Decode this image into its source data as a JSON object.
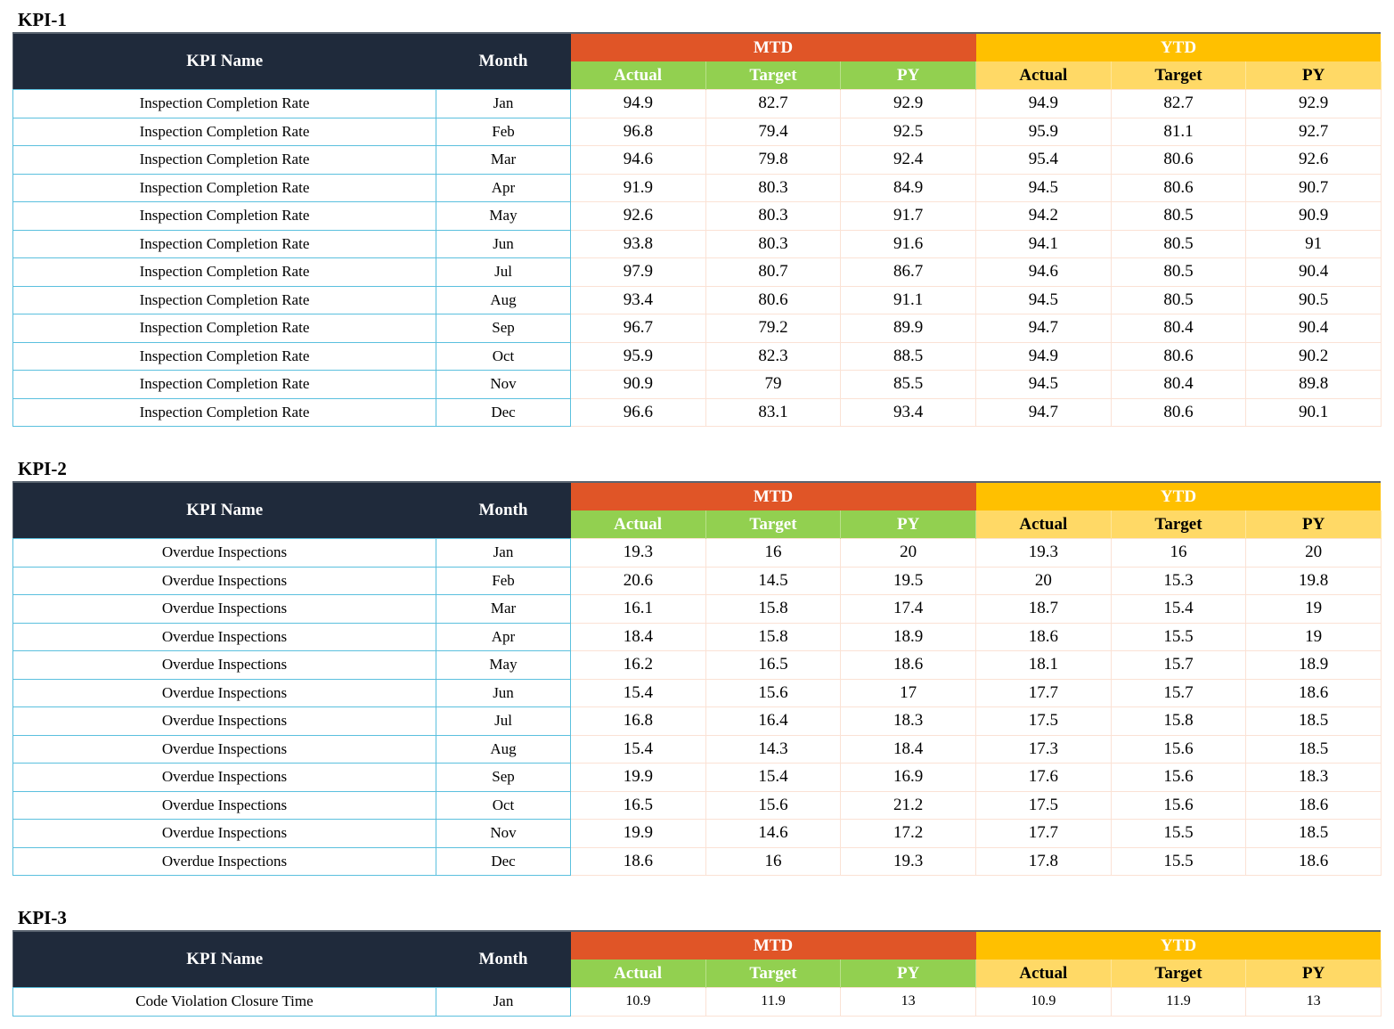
{
  "headers": {
    "kpi_name": "KPI Name",
    "month": "Month",
    "mtd": "MTD",
    "ytd": "YTD",
    "actual": "Actual",
    "target": "Target",
    "py": "PY"
  },
  "kpis": [
    {
      "title": "KPI-1",
      "rows": [
        {
          "name": "Inspection Completion Rate",
          "month": "Jan",
          "mtd_actual": "94.9",
          "mtd_target": "82.7",
          "mtd_py": "92.9",
          "ytd_actual": "94.9",
          "ytd_target": "82.7",
          "ytd_py": "92.9"
        },
        {
          "name": "Inspection Completion Rate",
          "month": "Feb",
          "mtd_actual": "96.8",
          "mtd_target": "79.4",
          "mtd_py": "92.5",
          "ytd_actual": "95.9",
          "ytd_target": "81.1",
          "ytd_py": "92.7"
        },
        {
          "name": "Inspection Completion Rate",
          "month": "Mar",
          "mtd_actual": "94.6",
          "mtd_target": "79.8",
          "mtd_py": "92.4",
          "ytd_actual": "95.4",
          "ytd_target": "80.6",
          "ytd_py": "92.6"
        },
        {
          "name": "Inspection Completion Rate",
          "month": "Apr",
          "mtd_actual": "91.9",
          "mtd_target": "80.3",
          "mtd_py": "84.9",
          "ytd_actual": "94.5",
          "ytd_target": "80.6",
          "ytd_py": "90.7"
        },
        {
          "name": "Inspection Completion Rate",
          "month": "May",
          "mtd_actual": "92.6",
          "mtd_target": "80.3",
          "mtd_py": "91.7",
          "ytd_actual": "94.2",
          "ytd_target": "80.5",
          "ytd_py": "90.9"
        },
        {
          "name": "Inspection Completion Rate",
          "month": "Jun",
          "mtd_actual": "93.8",
          "mtd_target": "80.3",
          "mtd_py": "91.6",
          "ytd_actual": "94.1",
          "ytd_target": "80.5",
          "ytd_py": "91"
        },
        {
          "name": "Inspection Completion Rate",
          "month": "Jul",
          "mtd_actual": "97.9",
          "mtd_target": "80.7",
          "mtd_py": "86.7",
          "ytd_actual": "94.6",
          "ytd_target": "80.5",
          "ytd_py": "90.4"
        },
        {
          "name": "Inspection Completion Rate",
          "month": "Aug",
          "mtd_actual": "93.4",
          "mtd_target": "80.6",
          "mtd_py": "91.1",
          "ytd_actual": "94.5",
          "ytd_target": "80.5",
          "ytd_py": "90.5"
        },
        {
          "name": "Inspection Completion Rate",
          "month": "Sep",
          "mtd_actual": "96.7",
          "mtd_target": "79.2",
          "mtd_py": "89.9",
          "ytd_actual": "94.7",
          "ytd_target": "80.4",
          "ytd_py": "90.4"
        },
        {
          "name": "Inspection Completion Rate",
          "month": "Oct",
          "mtd_actual": "95.9",
          "mtd_target": "82.3",
          "mtd_py": "88.5",
          "ytd_actual": "94.9",
          "ytd_target": "80.6",
          "ytd_py": "90.2"
        },
        {
          "name": "Inspection Completion Rate",
          "month": "Nov",
          "mtd_actual": "90.9",
          "mtd_target": "79",
          "mtd_py": "85.5",
          "ytd_actual": "94.5",
          "ytd_target": "80.4",
          "ytd_py": "89.8"
        },
        {
          "name": "Inspection Completion Rate",
          "month": "Dec",
          "mtd_actual": "96.6",
          "mtd_target": "83.1",
          "mtd_py": "93.4",
          "ytd_actual": "94.7",
          "ytd_target": "80.6",
          "ytd_py": "90.1"
        }
      ]
    },
    {
      "title": "KPI-2",
      "rows": [
        {
          "name": "Overdue Inspections",
          "month": "Jan",
          "mtd_actual": "19.3",
          "mtd_target": "16",
          "mtd_py": "20",
          "ytd_actual": "19.3",
          "ytd_target": "16",
          "ytd_py": "20"
        },
        {
          "name": "Overdue Inspections",
          "month": "Feb",
          "mtd_actual": "20.6",
          "mtd_target": "14.5",
          "mtd_py": "19.5",
          "ytd_actual": "20",
          "ytd_target": "15.3",
          "ytd_py": "19.8"
        },
        {
          "name": "Overdue Inspections",
          "month": "Mar",
          "mtd_actual": "16.1",
          "mtd_target": "15.8",
          "mtd_py": "17.4",
          "ytd_actual": "18.7",
          "ytd_target": "15.4",
          "ytd_py": "19"
        },
        {
          "name": "Overdue Inspections",
          "month": "Apr",
          "mtd_actual": "18.4",
          "mtd_target": "15.8",
          "mtd_py": "18.9",
          "ytd_actual": "18.6",
          "ytd_target": "15.5",
          "ytd_py": "19"
        },
        {
          "name": "Overdue Inspections",
          "month": "May",
          "mtd_actual": "16.2",
          "mtd_target": "16.5",
          "mtd_py": "18.6",
          "ytd_actual": "18.1",
          "ytd_target": "15.7",
          "ytd_py": "18.9"
        },
        {
          "name": "Overdue Inspections",
          "month": "Jun",
          "mtd_actual": "15.4",
          "mtd_target": "15.6",
          "mtd_py": "17",
          "ytd_actual": "17.7",
          "ytd_target": "15.7",
          "ytd_py": "18.6"
        },
        {
          "name": "Overdue Inspections",
          "month": "Jul",
          "mtd_actual": "16.8",
          "mtd_target": "16.4",
          "mtd_py": "18.3",
          "ytd_actual": "17.5",
          "ytd_target": "15.8",
          "ytd_py": "18.5"
        },
        {
          "name": "Overdue Inspections",
          "month": "Aug",
          "mtd_actual": "15.4",
          "mtd_target": "14.3",
          "mtd_py": "18.4",
          "ytd_actual": "17.3",
          "ytd_target": "15.6",
          "ytd_py": "18.5"
        },
        {
          "name": "Overdue Inspections",
          "month": "Sep",
          "mtd_actual": "19.9",
          "mtd_target": "15.4",
          "mtd_py": "16.9",
          "ytd_actual": "17.6",
          "ytd_target": "15.6",
          "ytd_py": "18.3"
        },
        {
          "name": "Overdue Inspections",
          "month": "Oct",
          "mtd_actual": "16.5",
          "mtd_target": "15.6",
          "mtd_py": "21.2",
          "ytd_actual": "17.5",
          "ytd_target": "15.6",
          "ytd_py": "18.6"
        },
        {
          "name": "Overdue Inspections",
          "month": "Nov",
          "mtd_actual": "19.9",
          "mtd_target": "14.6",
          "mtd_py": "17.2",
          "ytd_actual": "17.7",
          "ytd_target": "15.5",
          "ytd_py": "18.5"
        },
        {
          "name": "Overdue Inspections",
          "month": "Dec",
          "mtd_actual": "18.6",
          "mtd_target": "16",
          "mtd_py": "19.3",
          "ytd_actual": "17.8",
          "ytd_target": "15.5",
          "ytd_py": "18.6"
        }
      ]
    },
    {
      "title": "KPI-3",
      "rows": [
        {
          "name": "Code Violation Closure Time",
          "month": "Jan",
          "mtd_actual": "10.9",
          "mtd_target": "11.9",
          "mtd_py": "13",
          "ytd_actual": "10.9",
          "ytd_target": "11.9",
          "ytd_py": "13"
        }
      ]
    }
  ]
}
